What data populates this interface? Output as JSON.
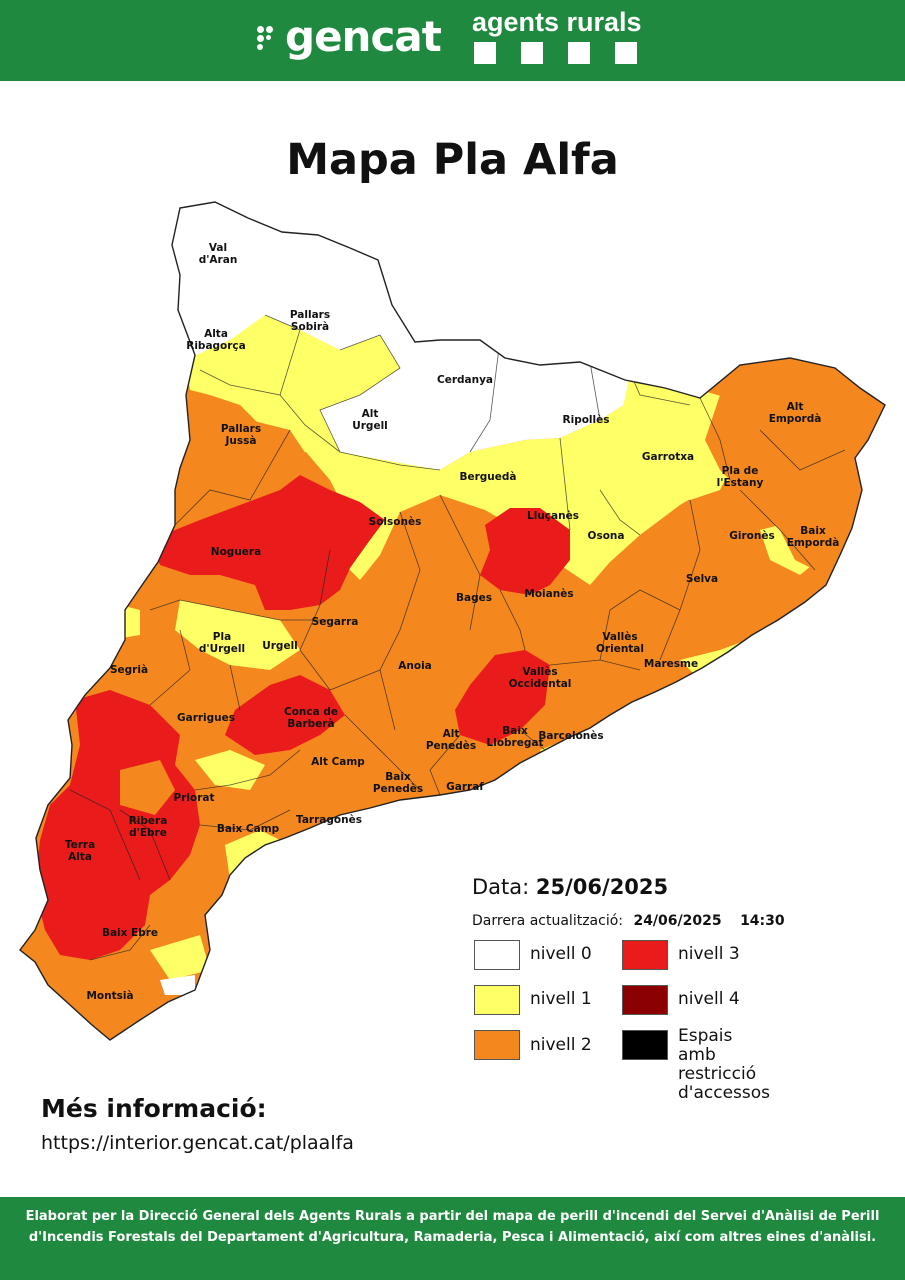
{
  "header": {
    "brand": "gencat",
    "agency": "agents rurals",
    "bg_color": "#1f8a3f"
  },
  "title": "Mapa Pla Alfa",
  "map_labels": {
    "val_aran": "Val\nd'Aran",
    "pallars_sobira": "Pallars\nSobirà",
    "alta_ribagorca": "Alta\nRibagorça",
    "cerdanya": "Cerdanya",
    "alt_urgell": "Alt\nUrgell",
    "ripolles": "Ripollès",
    "alt_emporda": "Alt\nEmpordà",
    "pallars_jussa": "Pallars\nJussà",
    "bergueda": "Berguedà",
    "garrotxa": "Garrotxa",
    "pla_estany": "Pla de\nl'Estany",
    "solsones": "Solsonès",
    "llucanes": "Lluçanès",
    "noguera": "Noguera",
    "osona": "Osona",
    "girones": "Gironès",
    "baix_emporda": "Baix\nEmpordà",
    "selva": "Selva",
    "bages": "Bages",
    "moianes": "Moianès",
    "segarra": "Segarra",
    "pla_urgell": "Pla\nd'Urgell",
    "urgell": "Urgell",
    "valles_oriental": "Vallès\nOriental",
    "segria": "Segrià",
    "anoia": "Anoia",
    "maresme": "Maresme",
    "valles_occidental": "Vallès\nOccidental",
    "garrigues": "Garrigues",
    "conca_barbera": "Conca de\nBarberà",
    "alt_penedes": "Alt\nPenedès",
    "baix_llobregat": "Baix\nLlobregat",
    "barcelones": "Barcelonès",
    "alt_camp": "Alt Camp",
    "baix_penedes": "Baix\nPenedès",
    "garraf": "Garraf",
    "priorat": "Priorat",
    "ribera_ebre": "Ribera\nd'Ebre",
    "baix_camp": "Baix Camp",
    "tarragones": "Tarragonès",
    "terra_alta": "Terra\nAlta",
    "baix_ebre": "Baix Ebre",
    "montsia": "Montsià"
  },
  "level_colors": {
    "nivell_0": "#ffffff",
    "nivell_1": "#ffff66",
    "nivell_2": "#f5871f",
    "nivell_3": "#ea1b1b",
    "nivell_4": "#8b0000",
    "restriccio": "#000000"
  },
  "date": {
    "label": "Data:",
    "value": "25/06/2025"
  },
  "update": {
    "label": "Darrera actualització:",
    "date": "24/06/2025",
    "time": "14:30"
  },
  "legend": {
    "nivell_0": "nivell 0",
    "nivell_1": "nivell 1",
    "nivell_2": "nivell 2",
    "nivell_3": "nivell 3",
    "nivell_4": "nivell 4",
    "restriccio": "Espais amb restricció\nd'accessos"
  },
  "more_info": {
    "title": "Més informació:",
    "url": "https://interior.gencat.cat/plaalfa"
  },
  "footer": "Elaborat per la Direcció General dels Agents Rurals a partir del mapa de perill d'incendi del Servei d'Anàlisi de Perill d'Incendis Forestals del Departament d'Agricultura, Ramaderia, Pesca i Alimentació, així com altres eines d'anàlisi."
}
